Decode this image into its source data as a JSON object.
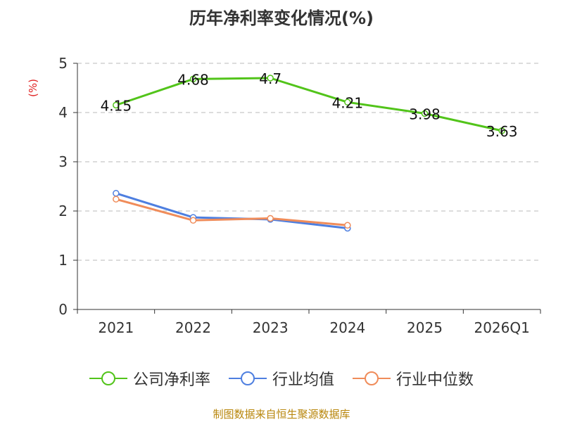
{
  "chart_data": {
    "type": "line",
    "title": "历年净利率变化情况(%)",
    "ylabel": "(%)",
    "xlabel": "",
    "ylim": [
      0,
      5
    ],
    "yticks": [
      0,
      1,
      2,
      3,
      4,
      5
    ],
    "categories": [
      "2021",
      "2022",
      "2023",
      "2024",
      "2025",
      "2026Q1"
    ],
    "grid": true,
    "legend_position": "bottom",
    "series": [
      {
        "name": "公司净利率",
        "color": "#52c41a",
        "values": [
          4.15,
          4.68,
          4.7,
          4.21,
          3.98,
          3.63
        ],
        "labels": [
          "4.15",
          "4.68",
          "4.7",
          "4.21",
          "3.98",
          "3.63"
        ]
      },
      {
        "name": "行业均值",
        "color": "#4e7fe0",
        "values": [
          2.36,
          1.87,
          1.83,
          1.65,
          null,
          null
        ]
      },
      {
        "name": "行业中位数",
        "color": "#f08c5a",
        "values": [
          2.24,
          1.81,
          1.85,
          1.71,
          null,
          null
        ]
      }
    ]
  },
  "source": "制图数据来自恒生聚源数据库"
}
